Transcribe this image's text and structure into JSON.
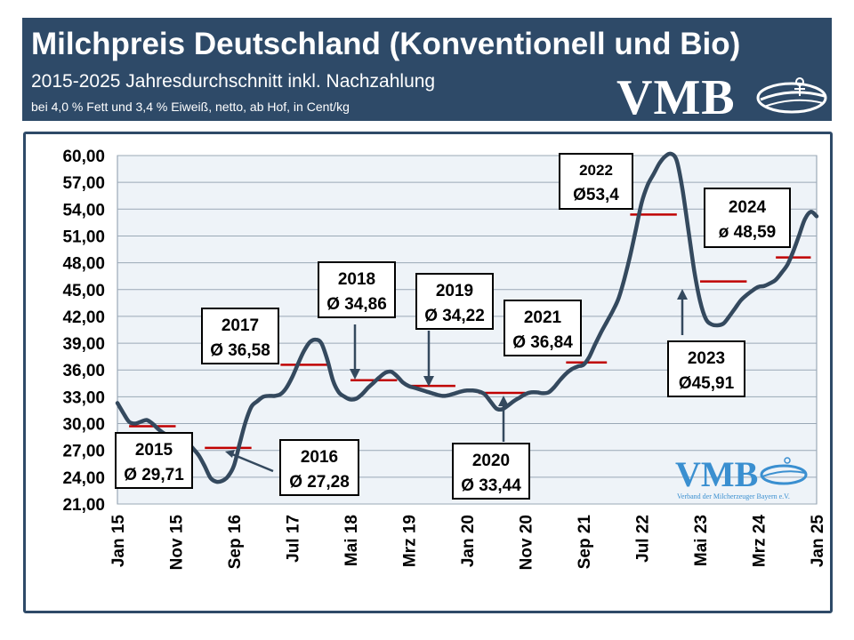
{
  "header": {
    "title": "Milchpreis Deutschland (Konventionell und Bio)",
    "subtitle": "2015-2025 Jahresdurchschnitt inkl. Nachzahlung",
    "subtitle2": "bei 4,0 % Fett und 3,4 % Eiweiß, netto, ab Hof, in Cent/kg",
    "logo_text": "VMB",
    "logo_icon": "vmb-swirl-logo",
    "background": "#2e4a68"
  },
  "watermark": {
    "logo_text": "VMB",
    "caption": "Verband der Milcherzeuger Bayern e.V.",
    "color": "#3a8fd0"
  },
  "chart_data": {
    "type": "line",
    "title": "",
    "xlabel": "",
    "ylabel": "",
    "ylim": [
      21,
      60
    ],
    "yticks": [
      "21,00",
      "24,00",
      "27,00",
      "30,00",
      "33,00",
      "36,00",
      "39,00",
      "42,00",
      "45,00",
      "48,00",
      "51,00",
      "54,00",
      "57,00",
      "60,00"
    ],
    "xticks": [
      {
        "label": "Jan 15",
        "date": "2015-01"
      },
      {
        "label": "Nov 15",
        "date": "2015-11"
      },
      {
        "label": "Sep 16",
        "date": "2016-09"
      },
      {
        "label": "Jul 17",
        "date": "2017-07"
      },
      {
        "label": "Mai 18",
        "date": "2018-05"
      },
      {
        "label": "Mrz 19",
        "date": "2019-03"
      },
      {
        "label": "Jan 20",
        "date": "2020-01"
      },
      {
        "label": "Nov 20",
        "date": "2020-11"
      },
      {
        "label": "Sep 21",
        "date": "2021-09"
      },
      {
        "label": "Jul 22",
        "date": "2022-07"
      },
      {
        "label": "Mai 23",
        "date": "2023-05"
      },
      {
        "label": "Mrz 24",
        "date": "2024-03"
      },
      {
        "label": "Jan 25",
        "date": "2025-01"
      }
    ],
    "grid": true,
    "line_color": "#34495e",
    "avg_color": "#c00000",
    "series": [
      {
        "points": [
          [
            "2015-01",
            32.3
          ],
          [
            "2015-02",
            31.2
          ],
          [
            "2015-03",
            30.2
          ],
          [
            "2015-04",
            30.0
          ],
          [
            "2015-05",
            30.2
          ],
          [
            "2015-06",
            30.4
          ],
          [
            "2015-07",
            30.0
          ],
          [
            "2015-08",
            29.4
          ],
          [
            "2015-09",
            28.9
          ],
          [
            "2015-10",
            28.6
          ],
          [
            "2015-11",
            28.7
          ],
          [
            "2015-12",
            28.6
          ],
          [
            "2016-01",
            27.9
          ],
          [
            "2016-02",
            27.2
          ],
          [
            "2016-03",
            26.4
          ],
          [
            "2016-04",
            25.2
          ],
          [
            "2016-05",
            23.9
          ],
          [
            "2016-06",
            23.5
          ],
          [
            "2016-07",
            23.6
          ],
          [
            "2016-08",
            24.1
          ],
          [
            "2016-09",
            25.3
          ],
          [
            "2016-10",
            27.8
          ],
          [
            "2016-11",
            30.2
          ],
          [
            "2016-12",
            31.9
          ],
          [
            "2017-01",
            32.5
          ],
          [
            "2017-02",
            33.0
          ],
          [
            "2017-03",
            33.1
          ],
          [
            "2017-04",
            33.1
          ],
          [
            "2017-05",
            33.3
          ],
          [
            "2017-06",
            34.0
          ],
          [
            "2017-07",
            35.2
          ],
          [
            "2017-08",
            36.7
          ],
          [
            "2017-09",
            38.1
          ],
          [
            "2017-10",
            39.1
          ],
          [
            "2017-11",
            39.4
          ],
          [
            "2017-12",
            39.0
          ],
          [
            "2018-01",
            37.2
          ],
          [
            "2018-02",
            34.8
          ],
          [
            "2018-03",
            33.5
          ],
          [
            "2018-04",
            33.0
          ],
          [
            "2018-05",
            32.7
          ],
          [
            "2018-06",
            32.8
          ],
          [
            "2018-07",
            33.3
          ],
          [
            "2018-08",
            34.0
          ],
          [
            "2018-09",
            34.6
          ],
          [
            "2018-10",
            35.2
          ],
          [
            "2018-11",
            35.7
          ],
          [
            "2018-12",
            35.8
          ],
          [
            "2019-01",
            35.3
          ],
          [
            "2019-02",
            34.6
          ],
          [
            "2019-03",
            34.2
          ],
          [
            "2019-04",
            34.0
          ],
          [
            "2019-05",
            33.8
          ],
          [
            "2019-06",
            33.6
          ],
          [
            "2019-07",
            33.4
          ],
          [
            "2019-08",
            33.2
          ],
          [
            "2019-09",
            33.1
          ],
          [
            "2019-10",
            33.2
          ],
          [
            "2019-11",
            33.4
          ],
          [
            "2019-12",
            33.6
          ],
          [
            "2020-01",
            33.7
          ],
          [
            "2020-02",
            33.7
          ],
          [
            "2020-03",
            33.6
          ],
          [
            "2020-04",
            33.3
          ],
          [
            "2020-05",
            32.5
          ],
          [
            "2020-06",
            31.7
          ],
          [
            "2020-07",
            31.6
          ],
          [
            "2020-08",
            32.0
          ],
          [
            "2020-09",
            32.5
          ],
          [
            "2020-10",
            32.9
          ],
          [
            "2020-11",
            33.3
          ],
          [
            "2020-12",
            33.5
          ],
          [
            "2021-01",
            33.5
          ],
          [
            "2021-02",
            33.4
          ],
          [
            "2021-03",
            33.5
          ],
          [
            "2021-04",
            34.1
          ],
          [
            "2021-05",
            34.9
          ],
          [
            "2021-06",
            35.6
          ],
          [
            "2021-07",
            36.1
          ],
          [
            "2021-08",
            36.4
          ],
          [
            "2021-09",
            36.6
          ],
          [
            "2021-10",
            37.5
          ],
          [
            "2021-11",
            38.9
          ],
          [
            "2021-12",
            40.2
          ],
          [
            "2022-01",
            41.4
          ],
          [
            "2022-02",
            42.6
          ],
          [
            "2022-03",
            44.0
          ],
          [
            "2022-04",
            46.2
          ],
          [
            "2022-05",
            48.8
          ],
          [
            "2022-06",
            51.8
          ],
          [
            "2022-07",
            54.8
          ],
          [
            "2022-08",
            56.7
          ],
          [
            "2022-09",
            57.9
          ],
          [
            "2022-10",
            59.1
          ],
          [
            "2022-11",
            59.9
          ],
          [
            "2022-12",
            60.2
          ],
          [
            "2023-01",
            59.4
          ],
          [
            "2023-02",
            56.1
          ],
          [
            "2023-03",
            51.6
          ],
          [
            "2023-04",
            47.1
          ],
          [
            "2023-05",
            43.7
          ],
          [
            "2023-06",
            41.7
          ],
          [
            "2023-07",
            41.1
          ],
          [
            "2023-08",
            41.0
          ],
          [
            "2023-09",
            41.2
          ],
          [
            "2023-10",
            42.0
          ],
          [
            "2023-11",
            42.9
          ],
          [
            "2023-12",
            43.8
          ],
          [
            "2024-01",
            44.4
          ],
          [
            "2024-02",
            44.9
          ],
          [
            "2024-03",
            45.3
          ],
          [
            "2024-04",
            45.4
          ],
          [
            "2024-05",
            45.7
          ],
          [
            "2024-06",
            46.1
          ],
          [
            "2024-07",
            46.9
          ],
          [
            "2024-08",
            47.8
          ],
          [
            "2024-09",
            49.3
          ],
          [
            "2024-10",
            51.1
          ],
          [
            "2024-11",
            52.9
          ],
          [
            "2024-12",
            53.7
          ],
          [
            "2025-01",
            53.2
          ]
        ]
      }
    ],
    "annual_averages": [
      {
        "year": "2015",
        "label_year": "2015",
        "label_value": "Ø 29,71",
        "value": 29.71,
        "from": "2015-03",
        "to": "2015-11"
      },
      {
        "year": "2016",
        "label_year": "2016",
        "label_value": "Ø 27,28",
        "value": 27.28,
        "from": "2016-04",
        "to": "2016-12"
      },
      {
        "year": "2017",
        "label_year": "2017",
        "label_value": "Ø 36,58",
        "value": 36.58,
        "from": "2017-05",
        "to": "2018-01"
      },
      {
        "year": "2018",
        "label_year": "2018",
        "label_value": "Ø 34,86",
        "value": 34.86,
        "from": "2018-05",
        "to": "2019-01"
      },
      {
        "year": "2019",
        "label_year": "2019",
        "label_value": "Ø 34,22",
        "value": 34.22,
        "from": "2019-03",
        "to": "2019-11"
      },
      {
        "year": "2020",
        "label_year": "2020",
        "label_value": "Ø 33,44",
        "value": 33.44,
        "from": "2020-03",
        "to": "2020-11"
      },
      {
        "year": "2021",
        "label_year": "2021",
        "label_value": "Ø 36,84",
        "value": 36.84,
        "from": "2021-06",
        "to": "2022-01"
      },
      {
        "year": "2022",
        "label_year": "2022",
        "label_value": "Ø53,4",
        "value": 53.4,
        "from": "2022-05",
        "to": "2023-01"
      },
      {
        "year": "2023",
        "label_year": "2023",
        "label_value": "Ø45,91",
        "value": 45.91,
        "from": "2023-05",
        "to": "2024-01"
      },
      {
        "year": "2024",
        "label_year": "2024",
        "label_value": "ø 48,59",
        "value": 48.59,
        "from": "2024-06",
        "to": "2024-12"
      }
    ]
  }
}
